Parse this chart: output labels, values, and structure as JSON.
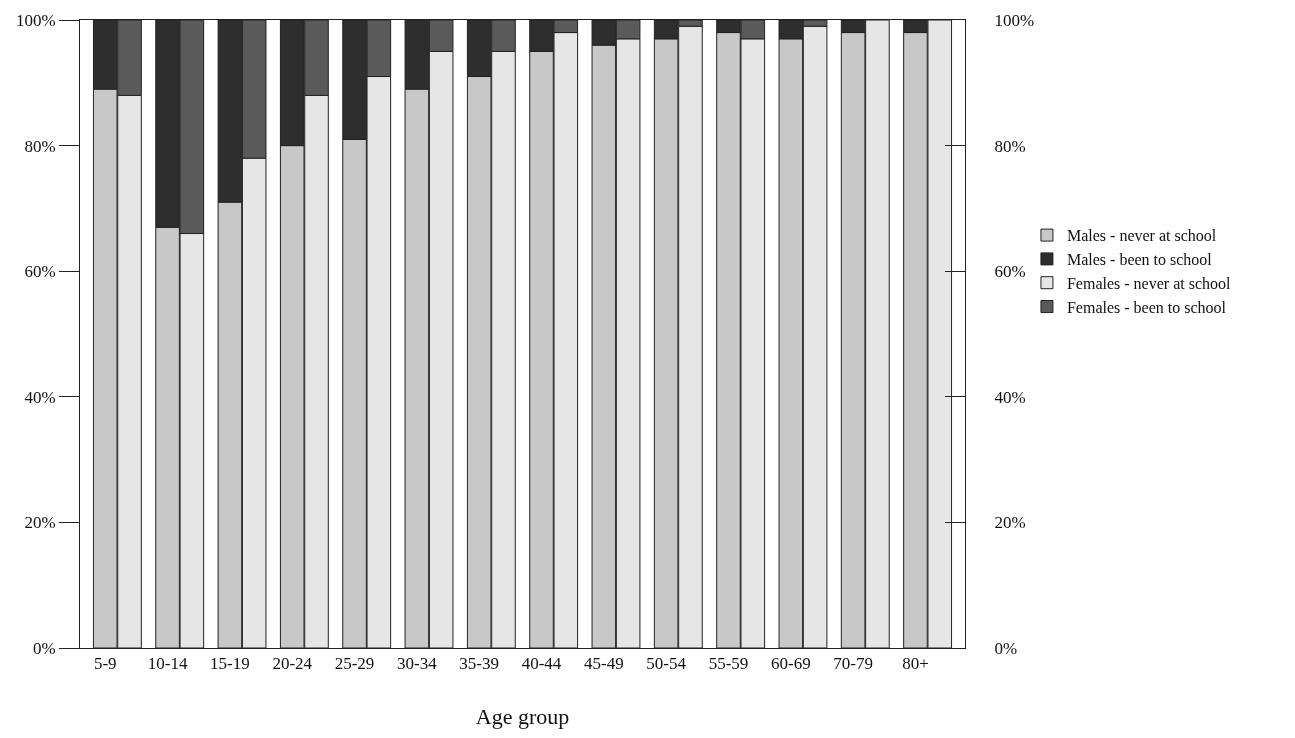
{
  "chart_data": {
    "type": "bar",
    "stacked": true,
    "xlabel": "Age group",
    "categories": [
      "5-9",
      null,
      "10-14",
      null,
      "15-19",
      null,
      "20-24",
      null,
      "25-29",
      null,
      "30-34",
      null,
      "35-39",
      null,
      "40-44",
      null,
      "45-49",
      null,
      "50-54",
      null,
      "55-59",
      null,
      "60-69",
      null,
      "70-79",
      null,
      "80+",
      null
    ],
    "series": [
      {
        "name": "Males - never at school",
        "color": "#c8c8c8",
        "values": [
          89,
          null,
          67,
          null,
          71,
          null,
          80,
          null,
          81,
          null,
          89,
          null,
          91,
          null,
          95,
          null,
          96,
          null,
          97,
          null,
          98,
          null,
          97,
          null,
          98,
          null,
          98,
          null
        ]
      },
      {
        "name": "Males - been to school",
        "color": "#2e2e2e",
        "values": [
          11,
          null,
          33,
          null,
          29,
          null,
          20,
          null,
          19,
          null,
          11,
          null,
          9,
          null,
          5,
          null,
          4,
          null,
          3,
          null,
          2,
          null,
          3,
          null,
          2,
          null,
          2,
          null
        ]
      },
      {
        "name": "Females - never at school",
        "color": "#e6e6e6",
        "values": [
          null,
          88,
          null,
          66,
          null,
          78,
          null,
          88,
          null,
          91,
          null,
          95,
          null,
          95,
          null,
          98,
          null,
          97,
          null,
          99,
          null,
          97,
          null,
          99,
          null,
          100,
          null,
          100
        ]
      },
      {
        "name": "Females - been to school",
        "color": "#5a5a5a",
        "values": [
          null,
          12,
          null,
          34,
          null,
          22,
          null,
          12,
          null,
          9,
          null,
          5,
          null,
          5,
          null,
          2,
          null,
          3,
          null,
          1,
          null,
          3,
          null,
          1,
          null,
          0,
          null,
          0
        ]
      }
    ],
    "ylim": [
      0,
      100
    ],
    "yticks": [
      {
        "value": 0,
        "label": "0%"
      },
      {
        "value": 20,
        "label": "20%"
      },
      {
        "value": 40,
        "label": "40%"
      },
      {
        "value": 60,
        "label": "60%"
      },
      {
        "value": 80,
        "label": "80%"
      },
      {
        "value": 100,
        "label": "100%"
      }
    ],
    "y2lim": [
      0,
      100
    ],
    "y2ticks": [
      {
        "value": 0,
        "label": "0%"
      },
      {
        "value": 20,
        "label": "20%"
      },
      {
        "value": 40,
        "label": "40%"
      },
      {
        "value": 60,
        "label": "60%"
      },
      {
        "value": 80,
        "label": "80%"
      },
      {
        "value": 100,
        "label": "100%"
      }
    ],
    "grid": false,
    "legend": "right"
  }
}
